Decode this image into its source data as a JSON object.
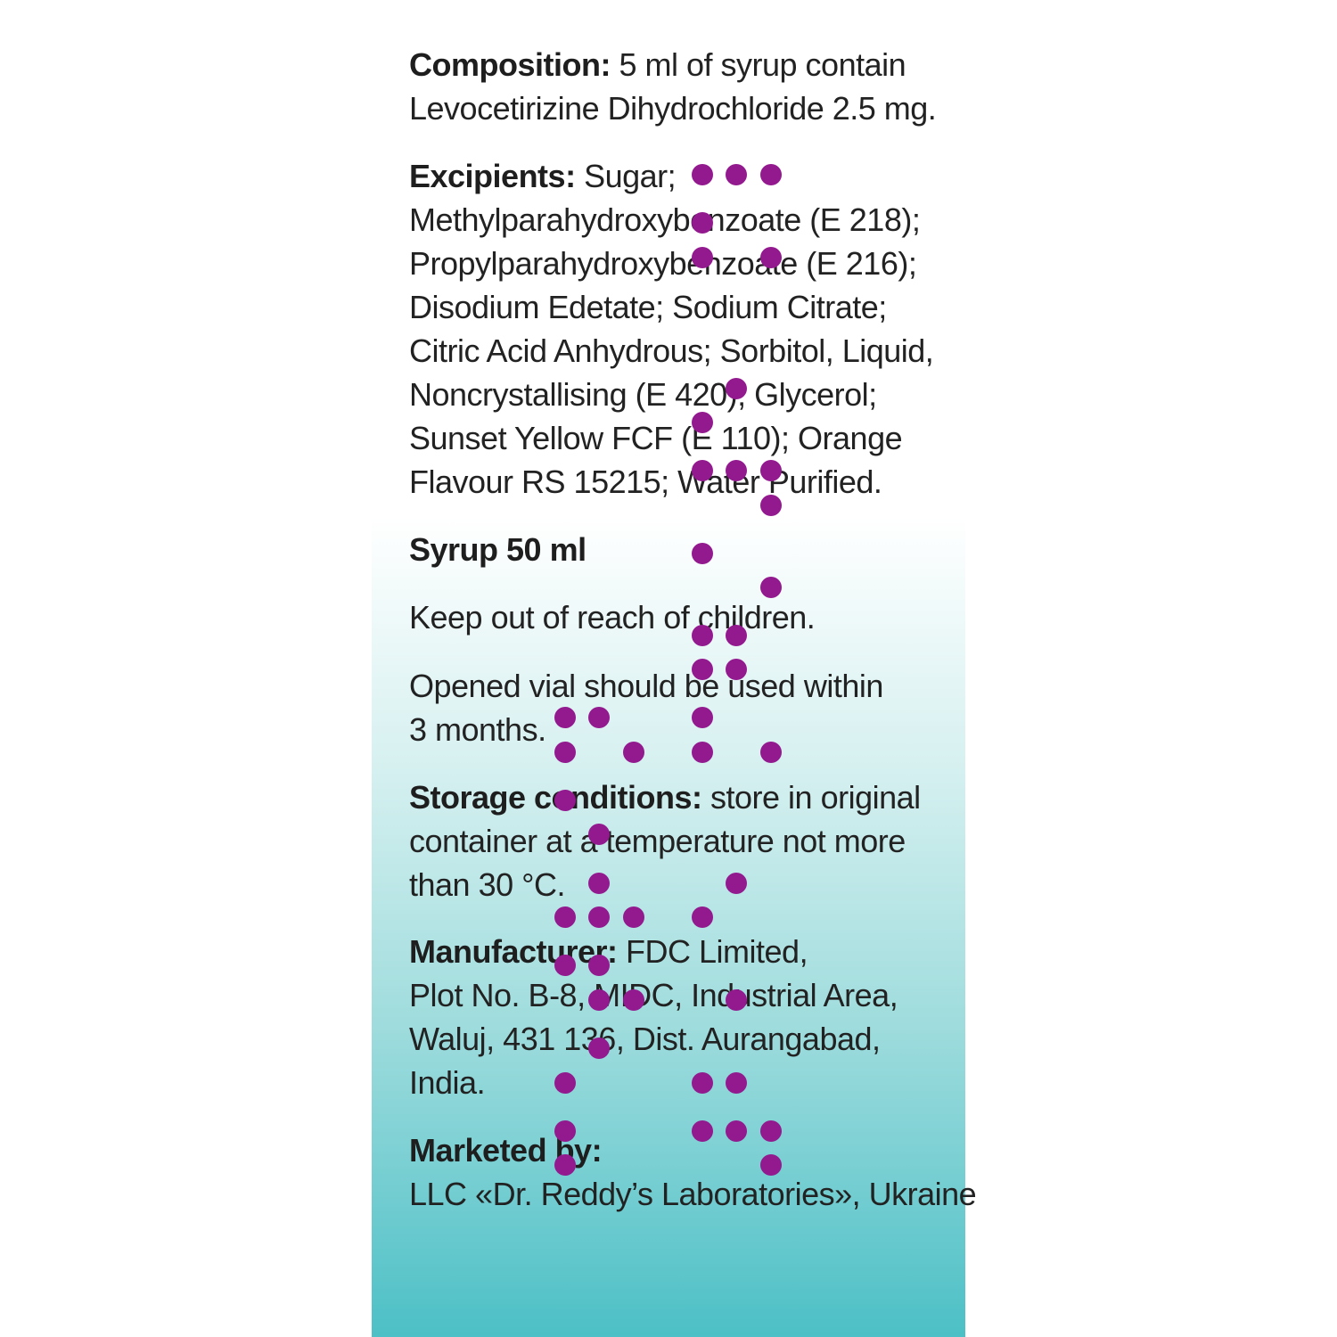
{
  "composition": {
    "label": "Composition:",
    "line1_rest": " 5 ml of syrup contain",
    "line2": "Levocetirizine Dihydrochloride 2.5 mg."
  },
  "excipients": {
    "label": "Excipients:",
    "line1_rest": " Sugar;",
    "lines": [
      "Methylparahydroxybenzoate (E 218);",
      "Propylparahydroxybenzoate (E 216);",
      "Disodium Edetate; Sodium Citrate;",
      "Citric Acid Anhydrous; Sorbitol, Liquid,",
      "Noncrystallising (E 420); Glycerol;",
      "Sunset Yellow FCF (E 110); Orange",
      "Flavour RS 15215; Water Purified."
    ]
  },
  "volume": {
    "label": "Syrup 50 ml"
  },
  "warning": {
    "text": "Keep out of reach of children."
  },
  "opened": {
    "line1": "Opened vial should be used within",
    "line2": "3 months."
  },
  "storage": {
    "label": "Storage conditions:",
    "line1_rest": " store in original",
    "line2": "container at a temperature not more",
    "line3": "than 30 °C."
  },
  "manufacturer": {
    "label": "Manufacturer:",
    "line1_rest": " FDC Limited,",
    "line2": "Plot No. B-8, MIDC, Industrial Area,",
    "line3": "Waluj, 431 136, Dist. Aurangabad,",
    "line4": "India."
  },
  "marketed": {
    "label": "Marketed by:",
    "line2": "LLC «Dr. Reddy’s Laboratories», Ukraine"
  },
  "colors": {
    "braille_dot": "#93198f",
    "gradient_bottom": "#4cc0c6",
    "text": "#222222"
  }
}
